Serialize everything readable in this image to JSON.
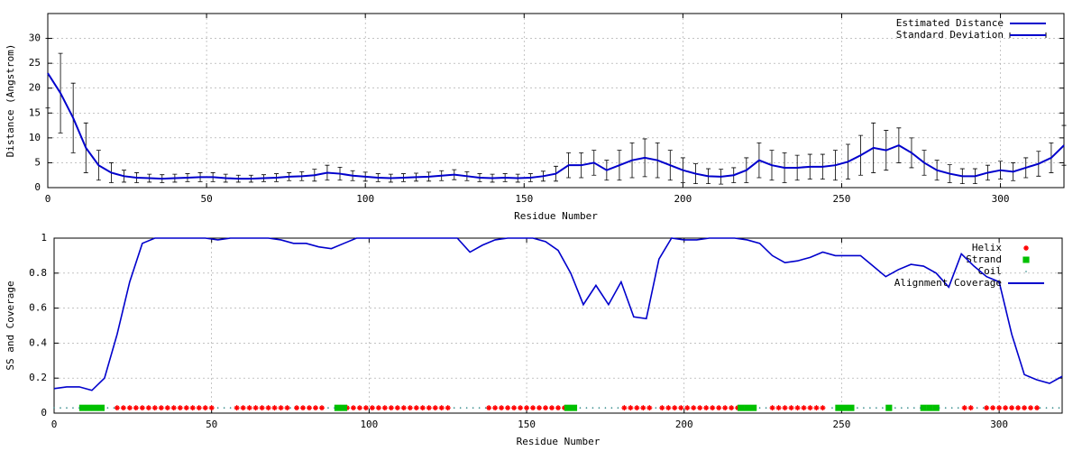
{
  "chart_data": [
    {
      "type": "errorbar-line",
      "ylabel": "Distance (Angstrom)",
      "xlabel": "Residue Number",
      "xlim": [
        0,
        320
      ],
      "ylim": [
        0,
        35
      ],
      "xticks": [
        0,
        50,
        100,
        150,
        200,
        250,
        300
      ],
      "yticks": [
        0,
        5,
        10,
        15,
        20,
        25,
        30
      ],
      "grid": true,
      "legend": "top-right",
      "x": [
        0,
        4,
        8,
        12,
        16,
        20,
        24,
        28,
        32,
        36,
        40,
        44,
        48,
        52,
        56,
        60,
        64,
        68,
        72,
        76,
        80,
        84,
        88,
        92,
        96,
        100,
        104,
        108,
        112,
        116,
        120,
        124,
        128,
        132,
        136,
        140,
        144,
        148,
        152,
        156,
        160,
        164,
        168,
        172,
        176,
        180,
        184,
        188,
        192,
        196,
        200,
        204,
        208,
        212,
        216,
        220,
        224,
        228,
        232,
        236,
        240,
        244,
        248,
        252,
        256,
        260,
        264,
        268,
        272,
        276,
        280,
        284,
        288,
        292,
        296,
        300,
        304,
        308,
        312,
        316,
        320
      ],
      "series": [
        {
          "name": "Estimated Distance",
          "color": "#0000cc",
          "values": [
            23,
            19,
            14,
            8,
            4.5,
            3,
            2.3,
            2,
            1.9,
            1.8,
            1.9,
            2,
            2.1,
            2.1,
            1.9,
            1.8,
            1.8,
            1.9,
            2,
            2.2,
            2.3,
            2.5,
            3,
            2.8,
            2.4,
            2.2,
            2,
            1.9,
            2,
            2.1,
            2.2,
            2.4,
            2.6,
            2.3,
            2,
            1.9,
            2,
            1.9,
            2,
            2.3,
            2.8,
            4.5,
            4.5,
            5,
            3.5,
            4.5,
            5.5,
            6,
            5.5,
            4.5,
            3.5,
            2.8,
            2.3,
            2.2,
            2.5,
            3.5,
            5.5,
            4.5,
            4,
            4,
            4.2,
            4.2,
            4.5,
            5.2,
            6.5,
            8,
            7.5,
            8.5,
            7,
            5,
            3.5,
            2.8,
            2.3,
            2.3,
            3,
            3.5,
            3.2,
            4,
            4.8,
            6,
            8.5
          ]
        },
        {
          "name": "Standard Deviation",
          "color": "#000000",
          "values": [
            7,
            8,
            7,
            5,
            3,
            2,
            1.2,
            1,
            0.8,
            0.8,
            0.8,
            0.8,
            0.9,
            0.9,
            0.8,
            0.7,
            0.7,
            0.7,
            0.8,
            0.8,
            0.9,
            1.2,
            1.5,
            1.3,
            1,
            0.9,
            0.8,
            0.8,
            0.8,
            0.8,
            0.9,
            1,
            1,
            0.9,
            0.8,
            0.8,
            0.8,
            0.8,
            0.8,
            1,
            1.5,
            2.5,
            2.5,
            2.5,
            2,
            3,
            3.5,
            3.8,
            3.5,
            3,
            2.5,
            2,
            1.5,
            1.5,
            1.5,
            2.5,
            3.5,
            3,
            3,
            2.5,
            2.5,
            2.5,
            3,
            3.5,
            4,
            5,
            4,
            3.5,
            3,
            2.5,
            2,
            1.8,
            1.5,
            1.5,
            1.5,
            1.8,
            1.8,
            2,
            2.5,
            3,
            4
          ]
        }
      ]
    },
    {
      "type": "ss-coverage",
      "ylabel": "SS and Coverage",
      "xlabel": "Residue Number",
      "xlim": [
        0,
        320
      ],
      "ylim": [
        0,
        1
      ],
      "xticks": [
        0,
        50,
        100,
        150,
        200,
        250,
        300
      ],
      "yticks": [
        0,
        0.2,
        0.4,
        0.6,
        0.8,
        1
      ],
      "grid": true,
      "legend": "top-right",
      "series": [
        {
          "name": "Helix",
          "color": "#ff0000",
          "marker": "star",
          "x": [
            20,
            22,
            24,
            26,
            28,
            30,
            32,
            34,
            36,
            38,
            40,
            42,
            44,
            46,
            48,
            50,
            58,
            60,
            62,
            64,
            66,
            68,
            70,
            72,
            74,
            77,
            79,
            81,
            83,
            85,
            93,
            95,
            97,
            99,
            101,
            103,
            105,
            107,
            109,
            111,
            113,
            115,
            117,
            119,
            121,
            123,
            125,
            138,
            140,
            142,
            144,
            146,
            148,
            150,
            152,
            154,
            156,
            158,
            160,
            162,
            181,
            183,
            185,
            187,
            189,
            193,
            195,
            197,
            199,
            201,
            203,
            205,
            207,
            209,
            211,
            213,
            215,
            217,
            228,
            230,
            232,
            234,
            236,
            238,
            240,
            242,
            244,
            289,
            291,
            296,
            298,
            300,
            302,
            304,
            306,
            308,
            310,
            312
          ],
          "values": [
            0.03,
            0.03,
            0.03,
            0.03,
            0.03,
            0.03,
            0.03,
            0.03,
            0.03,
            0.03,
            0.03,
            0.03,
            0.03,
            0.03,
            0.03,
            0.03,
            0.03,
            0.03,
            0.03,
            0.03,
            0.03,
            0.03,
            0.03,
            0.03,
            0.03,
            0.03,
            0.03,
            0.03,
            0.03,
            0.03,
            0.03,
            0.03,
            0.03,
            0.03,
            0.03,
            0.03,
            0.03,
            0.03,
            0.03,
            0.03,
            0.03,
            0.03,
            0.03,
            0.03,
            0.03,
            0.03,
            0.03,
            0.03,
            0.03,
            0.03,
            0.03,
            0.03,
            0.03,
            0.03,
            0.03,
            0.03,
            0.03,
            0.03,
            0.03,
            0.03,
            0.03,
            0.03,
            0.03,
            0.03,
            0.03,
            0.03,
            0.03,
            0.03,
            0.03,
            0.03,
            0.03,
            0.03,
            0.03,
            0.03,
            0.03,
            0.03,
            0.03,
            0.03,
            0.03,
            0.03,
            0.03,
            0.03,
            0.03,
            0.03,
            0.03,
            0.03,
            0.03,
            0.03,
            0.03,
            0.03,
            0.03,
            0.03,
            0.03,
            0.03,
            0.03,
            0.03,
            0.03,
            0.03
          ]
        },
        {
          "name": "Strand",
          "color": "#00c000",
          "marker": "square",
          "x": [
            9,
            11,
            13,
            15,
            90,
            92,
            163,
            165,
            218,
            220,
            222,
            249,
            251,
            253,
            265,
            276,
            278,
            280
          ],
          "values": [
            0.03,
            0.03,
            0.03,
            0.03,
            0.03,
            0.03,
            0.03,
            0.03,
            0.03,
            0.03,
            0.03,
            0.03,
            0.03,
            0.03,
            0.03,
            0.03,
            0.03,
            0.03
          ]
        },
        {
          "name": "Coil",
          "color": "#208080",
          "marker": "dot",
          "x": [
            0,
            2,
            4,
            6,
            8,
            17,
            19,
            52,
            54,
            56,
            75,
            87,
            89,
            127,
            129,
            131,
            133,
            135,
            137,
            167,
            169,
            171,
            173,
            175,
            177,
            179,
            191,
            224,
            226,
            247,
            255,
            257,
            259,
            261,
            263,
            267,
            269,
            271,
            273,
            275,
            281,
            283,
            285,
            287,
            293,
            295,
            313,
            315,
            317,
            319
          ],
          "values": [
            0.03,
            0.03,
            0.03,
            0.03,
            0.03,
            0.03,
            0.03,
            0.03,
            0.03,
            0.03,
            0.03,
            0.03,
            0.03,
            0.03,
            0.03,
            0.03,
            0.03,
            0.03,
            0.03,
            0.03,
            0.03,
            0.03,
            0.03,
            0.03,
            0.03,
            0.03,
            0.03,
            0.03,
            0.03,
            0.03,
            0.03,
            0.03,
            0.03,
            0.03,
            0.03,
            0.03,
            0.03,
            0.03,
            0.03,
            0.03,
            0.03,
            0.03,
            0.03,
            0.03,
            0.03,
            0.03,
            0.03,
            0.03,
            0.03,
            0.03
          ]
        },
        {
          "name": "Alignment Coverage",
          "color": "#0000cc",
          "marker": "line",
          "x": [
            0,
            4,
            8,
            12,
            16,
            20,
            24,
            28,
            32,
            36,
            40,
            44,
            48,
            52,
            56,
            60,
            64,
            68,
            72,
            76,
            80,
            84,
            88,
            92,
            96,
            100,
            104,
            108,
            112,
            116,
            120,
            124,
            128,
            132,
            136,
            140,
            144,
            148,
            152,
            156,
            160,
            164,
            168,
            172,
            176,
            180,
            184,
            188,
            192,
            196,
            200,
            204,
            208,
            212,
            216,
            220,
            224,
            228,
            232,
            236,
            240,
            244,
            248,
            252,
            256,
            260,
            264,
            268,
            272,
            276,
            280,
            284,
            288,
            292,
            296,
            300,
            304,
            308,
            312,
            316,
            320
          ],
          "values": [
            0.14,
            0.15,
            0.15,
            0.13,
            0.2,
            0.45,
            0.75,
            0.97,
            1,
            1,
            1,
            1,
            1,
            0.99,
            1,
            1,
            1,
            1,
            0.99,
            0.97,
            0.97,
            0.95,
            0.94,
            0.97,
            1,
            1,
            1,
            1,
            1,
            1,
            1,
            1,
            1,
            0.92,
            0.96,
            0.99,
            1,
            1,
            1,
            0.98,
            0.93,
            0.8,
            0.62,
            0.73,
            0.62,
            0.75,
            0.55,
            0.54,
            0.88,
            1,
            0.99,
            0.99,
            1,
            1,
            1,
            0.99,
            0.97,
            0.9,
            0.86,
            0.87,
            0.89,
            0.92,
            0.9,
            0.9,
            0.9,
            0.84,
            0.78,
            0.82,
            0.85,
            0.84,
            0.8,
            0.72,
            0.91,
            0.84,
            0.78,
            0.75,
            0.45,
            0.22,
            0.19,
            0.17,
            0.21
          ]
        }
      ]
    }
  ]
}
